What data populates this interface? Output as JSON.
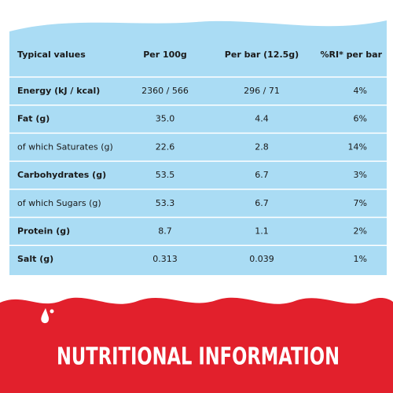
{
  "table": {
    "headers": [
      "Typical values",
      "Per 100g",
      "Per bar (12.5g)",
      "%RI* per bar"
    ],
    "rows": [
      [
        "Energy (kJ / kcal)",
        "2360 / 566",
        "296 / 71",
        "4%"
      ],
      [
        "Fat (g)",
        "35.0",
        "4.4",
        "6%"
      ],
      [
        "of which Saturates (g)",
        "22.6",
        "2.8",
        "14%"
      ],
      [
        "Carbohydrates (g)",
        "53.5",
        "6.7",
        "3%"
      ],
      [
        "of which Sugars (g)",
        "53.3",
        "6.7",
        "7%"
      ],
      [
        "Protein (g)",
        "8.7",
        "1.1",
        "2%"
      ],
      [
        "Salt (g)",
        "0.313",
        "0.039",
        "1%"
      ]
    ]
  },
  "footer": {
    "title": "NUTRITIONAL INFORMATION"
  }
}
